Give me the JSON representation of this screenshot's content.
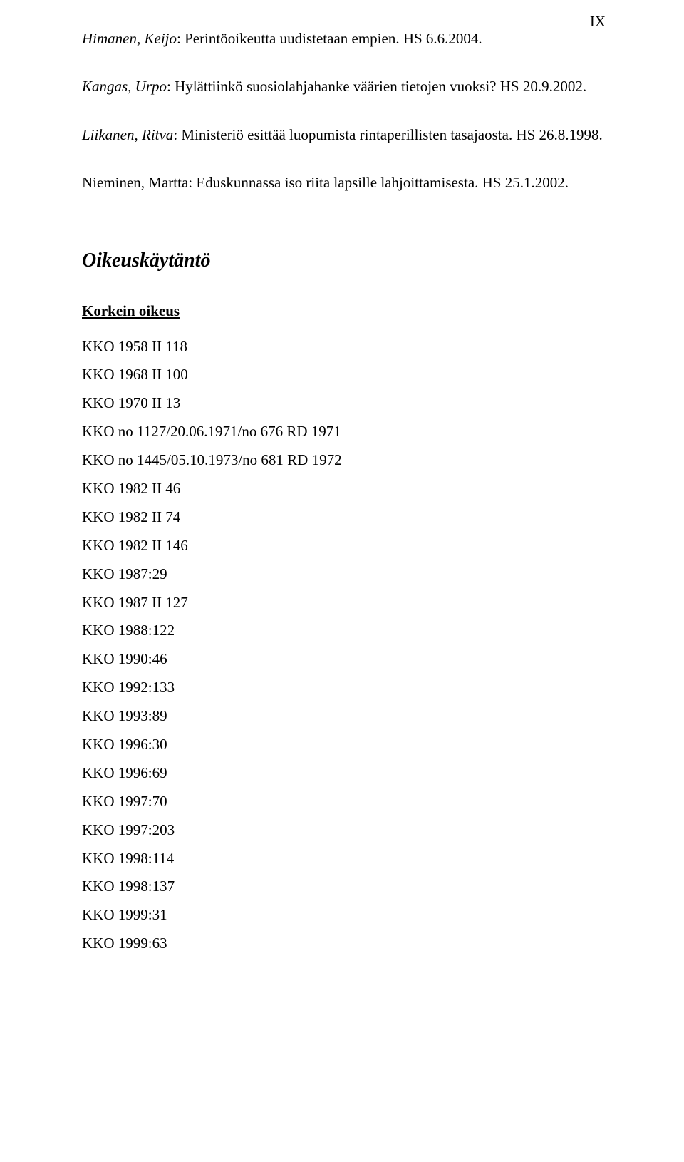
{
  "pageNumber": "IX",
  "references": [
    {
      "author": "Himanen, Keijo",
      "rest": ": Perintöoikeutta uudistetaan empien. HS 6.6.2004."
    },
    {
      "author": "Kangas, Urpo",
      "rest": ": Hylättiinkö suosiolahjahanke väärien tietojen vuoksi? HS 20.9.2002."
    },
    {
      "author": "Liikanen, Ritva",
      "rest": ": Ministeriö esittää luopumista rintaperillisten tasajaosta. HS 26.8.1998."
    },
    {
      "author": "",
      "rest": "Nieminen, Martta: Eduskunnassa iso riita lapsille lahjoittamisesta. HS 25.1.2002."
    }
  ],
  "sectionHeading": "Oikeuskäytäntö",
  "subHeading": "Korkein oikeus",
  "cases": [
    "KKO 1958 II 118",
    "KKO 1968 II 100",
    "KKO 1970 II 13",
    "KKO no 1127/20.06.1971/no 676 RD 1971",
    "KKO no 1445/05.10.1973/no 681 RD 1972",
    "KKO 1982 II 46",
    "KKO 1982 II 74",
    "KKO 1982 II 146",
    "KKO 1987:29",
    "KKO 1987 II 127",
    "KKO 1988:122",
    "KKO 1990:46",
    "KKO 1992:133",
    "KKO 1993:89",
    "KKO 1996:30",
    "KKO 1996:69",
    "KKO 1997:70",
    "KKO 1997:203",
    "KKO 1998:114",
    "KKO 1998:137",
    "KKO 1999:31",
    "KKO 1999:63"
  ]
}
